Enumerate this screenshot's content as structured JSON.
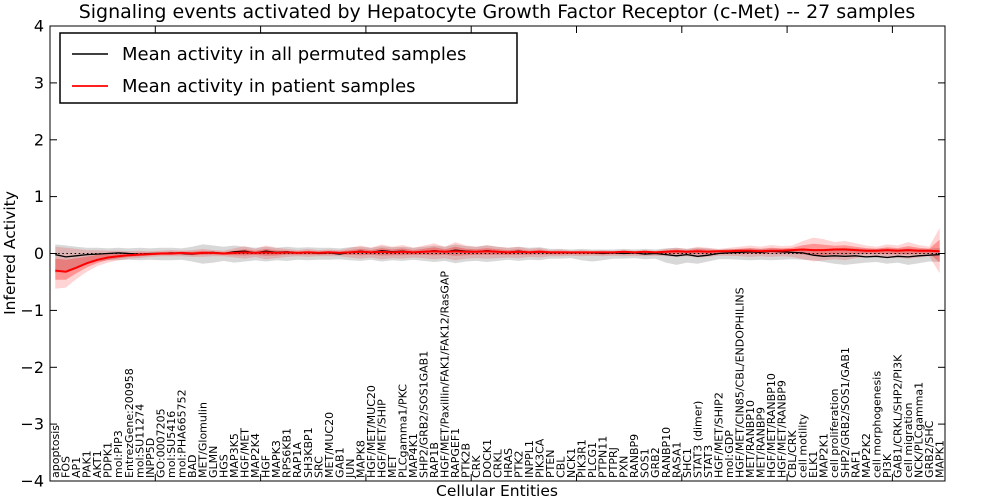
{
  "figure": {
    "background": "#ffffff"
  },
  "chart_data": {
    "type": "line",
    "title": "Signaling events activated by Hepatocyte Growth Factor Receptor (c-Met) -- 27 samples",
    "xlabel": "Cellular Entities",
    "ylabel": "Inferred Activity",
    "ylim": [
      -4,
      4
    ],
    "yticks": [
      {
        "value": 4,
        "label": "4"
      },
      {
        "value": 3,
        "label": "3"
      },
      {
        "value": 2,
        "label": "2"
      },
      {
        "value": 1,
        "label": "1"
      },
      {
        "value": 0,
        "label": "0"
      },
      {
        "value": -1,
        "label": "−1"
      },
      {
        "value": -2,
        "label": "−2"
      },
      {
        "value": -3,
        "label": "−3"
      },
      {
        "value": -4,
        "label": "−4"
      }
    ],
    "grid": false,
    "zero_line": {
      "style": "dotted",
      "color": "#000000",
      "y": 0
    },
    "legend": {
      "position": "upper left",
      "entries": [
        {
          "label": "Mean activity in all permuted samples",
          "color": "#000000"
        },
        {
          "label": "Mean activity in patient samples",
          "color": "#ff0000"
        }
      ]
    },
    "categories": [
      "apoptosis",
      "FOS",
      "AP1",
      "PAK1",
      "AKT1",
      "PDPK1",
      "mol:PIP3",
      "EntrezGene:200958",
      "mol:SU11274",
      "INPP5D",
      "GO:0007205",
      "mol:SU5416",
      "mol:PHA665752",
      "BAD",
      "MET/Glomulin",
      "GLMN",
      "HGS",
      "MAP3K5",
      "HGF/MET",
      "MAP2K4",
      "HGF",
      "MAPK3",
      "RPS6KB1",
      "RAP1A",
      "SH3KBP1",
      "SRC",
      "MET/MUC20",
      "GAB1",
      "JUN",
      "MAPK8",
      "HGF/MET/MUC20",
      "HGF/MET/SHIP",
      "MET",
      "PLCgamma1/PKC",
      "MAP4K1",
      "SHP2/GRB2/SOS1GAB1",
      "RAP1B",
      "HGF/MET/Paxillin/FAK1/FAK12/RasGAP",
      "RAPGEF1",
      "PTK2B",
      "CRK",
      "DOCK1",
      "CRKL",
      "HRAS",
      "PTK2",
      "INPPL1",
      "PIK3CA",
      "PTEN",
      "CBL",
      "NCK1",
      "PIK3R1",
      "PLCG1",
      "PTPN11",
      "PTPRJ",
      "PXN",
      "RANBP9",
      "SOS1",
      "GRB2",
      "RANBP10",
      "RASA1",
      "SHC1",
      "STAT3 (dimer)",
      "STAT3",
      "HGF/MET/SHIP2",
      "mol:GDP",
      "HGF/MET/CIN85/CBL/ENDOPHILINS",
      "MET/RANBP10",
      "MET/RANBP9",
      "HGF/MET/RANBP10",
      "HGF/MET/RANBP9",
      "CBL/CRK",
      "cell motility",
      "ELK1",
      "MAP2K1",
      "cell proliferation",
      "SHP2/GRB2/SOS1/GAB1",
      "RAF1",
      "MAP2K2",
      "cell morphogenesis",
      "PI3K",
      "GAB1/CRKL/SHP2/PI3K",
      "cell migration",
      "NCK/PLCgamma1",
      "GRB2/SHC",
      "MAPK1"
    ],
    "series": [
      {
        "name": "Mean activity in all permuted samples",
        "color": "#000000",
        "values": [
          -0.02,
          -0.06,
          -0.04,
          -0.02,
          -0.01,
          0,
          0.01,
          0,
          -0.01,
          0,
          0,
          0.01,
          0,
          -0.01,
          0.01,
          0.02,
          0,
          0.03,
          0.04,
          0.01,
          0.04,
          0.02,
          0.03,
          0.01,
          0.02,
          0,
          0.01,
          -0.01,
          0.02,
          0.04,
          0.02,
          0.05,
          0.03,
          0.04,
          0.02,
          0.03,
          0.05,
          0.03,
          0.06,
          0.04,
          0.03,
          0.05,
          0.03,
          0.02,
          0.04,
          0.02,
          0.03,
          0.01,
          0.02,
          0.01,
          0.02,
          0.01,
          0,
          0.01,
          0,
          0.01,
          -0.01,
          0,
          -0.02,
          -0.04,
          -0.02,
          -0.05,
          -0.03,
          0,
          0.01,
          0.02,
          0.03,
          0.02,
          0.04,
          0.03,
          0.02,
          0.01,
          -0.03,
          -0.05,
          -0.04,
          -0.05,
          -0.04,
          -0.06,
          -0.05,
          -0.07,
          -0.05,
          -0.06,
          -0.04,
          -0.03,
          -0.02
        ],
        "band": {
          "color": "#999999",
          "upper": [
            0.16,
            0.14,
            0.12,
            0.1,
            0.1,
            0.09,
            0.1,
            0.09,
            0.1,
            0.09,
            0.1,
            0.1,
            0.09,
            0.12,
            0.16,
            0.14,
            0.12,
            0.14,
            0.12,
            0.1,
            0.12,
            0.1,
            0.12,
            0.1,
            0.11,
            0.1,
            0.1,
            0.09,
            0.11,
            0.12,
            0.1,
            0.13,
            0.11,
            0.12,
            0.1,
            0.12,
            0.14,
            0.12,
            0.16,
            0.13,
            0.12,
            0.14,
            0.12,
            0.1,
            0.12,
            0.1,
            0.11,
            0.08,
            0.08,
            0.07,
            0.08,
            0.07,
            0.07,
            0.07,
            0.08,
            0.07,
            0.08,
            0.07,
            0.09,
            0.1,
            0.08,
            0.1,
            0.09,
            0.07,
            0.08,
            0.08,
            0.09,
            0.08,
            0.09,
            0.08,
            0.08,
            0.09,
            0.07,
            0.08,
            0.09,
            0.1,
            0.09,
            0.08,
            0.08,
            0.09,
            0.08,
            0.09,
            0.08,
            0.08,
            0.1
          ],
          "lower": [
            -0.34,
            -0.3,
            -0.24,
            -0.18,
            -0.14,
            -0.12,
            -0.12,
            -0.11,
            -0.12,
            -0.11,
            -0.12,
            -0.12,
            -0.11,
            -0.14,
            -0.18,
            -0.16,
            -0.13,
            -0.16,
            -0.14,
            -0.12,
            -0.14,
            -0.12,
            -0.13,
            -0.11,
            -0.12,
            -0.11,
            -0.11,
            -0.1,
            -0.12,
            -0.13,
            -0.11,
            -0.14,
            -0.12,
            -0.13,
            -0.11,
            -0.13,
            -0.15,
            -0.13,
            -0.17,
            -0.14,
            -0.13,
            -0.15,
            -0.13,
            -0.11,
            -0.13,
            -0.11,
            -0.12,
            -0.09,
            -0.09,
            -0.08,
            -0.12,
            -0.14,
            -0.12,
            -0.09,
            -0.09,
            -0.08,
            -0.1,
            -0.09,
            -0.16,
            -0.2,
            -0.16,
            -0.18,
            -0.14,
            -0.1,
            -0.1,
            -0.11,
            -0.12,
            -0.11,
            -0.12,
            -0.11,
            -0.1,
            -0.11,
            -0.12,
            -0.15,
            -0.18,
            -0.2,
            -0.18,
            -0.16,
            -0.15,
            -0.18,
            -0.16,
            -0.2,
            -0.17,
            -0.14,
            -0.15
          ]
        }
      },
      {
        "name": "Mean activity in patient samples",
        "color": "#ff0000",
        "values": [
          -0.3,
          -0.32,
          -0.25,
          -0.17,
          -0.11,
          -0.07,
          -0.05,
          -0.03,
          -0.02,
          -0.01,
          0,
          0,
          0.01,
          0,
          0.01,
          0.01,
          0,
          0.01,
          0.02,
          0.01,
          0.02,
          0.01,
          0.02,
          0.01,
          0.02,
          0.01,
          0.02,
          0.01,
          0.02,
          0.03,
          0.02,
          0.03,
          0.02,
          0.03,
          0.02,
          0.03,
          0.04,
          0.03,
          0.04,
          0.03,
          0.03,
          0.04,
          0.03,
          0.02,
          0.03,
          0.02,
          0.03,
          0.02,
          0.02,
          0.02,
          0.02,
          0.02,
          0.02,
          0.02,
          0.03,
          0.02,
          0.03,
          0.02,
          0.03,
          0.04,
          0.03,
          0.04,
          0.03,
          0.04,
          0.04,
          0.05,
          0.05,
          0.04,
          0.05,
          0.05,
          0.06,
          0.07,
          0.06,
          0.06,
          0.07,
          0.07,
          0.06,
          0.05,
          0.05,
          0.06,
          0.05,
          0.06,
          0.05,
          0.05,
          0.04
        ],
        "band": {
          "color": "#ff0000",
          "upper": [
            0.12,
            0.1,
            0.08,
            0.06,
            0.06,
            0.05,
            0.05,
            0.04,
            0.05,
            0.04,
            0.05,
            0.06,
            0.05,
            0.06,
            0.08,
            0.06,
            0.05,
            0.09,
            0.13,
            0.08,
            0.14,
            0.1,
            0.08,
            0.06,
            0.08,
            0.06,
            0.07,
            0.06,
            0.1,
            0.14,
            0.1,
            0.16,
            0.12,
            0.15,
            0.1,
            0.14,
            0.18,
            0.12,
            0.2,
            0.14,
            0.12,
            0.15,
            0.12,
            0.1,
            0.12,
            0.08,
            0.1,
            0.06,
            0.07,
            0.05,
            0.06,
            0.05,
            0.06,
            0.05,
            0.06,
            0.05,
            0.06,
            0.05,
            0.08,
            0.1,
            0.08,
            0.12,
            0.1,
            0.08,
            0.1,
            0.12,
            0.14,
            0.12,
            0.15,
            0.13,
            0.14,
            0.22,
            0.28,
            0.25,
            0.2,
            0.22,
            0.18,
            0.14,
            0.12,
            0.16,
            0.14,
            0.2,
            0.15,
            0.12,
            0.45
          ],
          "lower": [
            -0.62,
            -0.6,
            -0.45,
            -0.32,
            -0.22,
            -0.16,
            -0.12,
            -0.09,
            -0.08,
            -0.06,
            -0.05,
            -0.05,
            -0.05,
            -0.06,
            -0.06,
            -0.05,
            -0.05,
            -0.07,
            -0.09,
            -0.06,
            -0.1,
            -0.08,
            -0.06,
            -0.05,
            -0.06,
            -0.05,
            -0.05,
            -0.05,
            -0.07,
            -0.09,
            -0.07,
            -0.1,
            -0.08,
            -0.09,
            -0.07,
            -0.08,
            -0.1,
            -0.08,
            -0.12,
            -0.09,
            -0.08,
            -0.09,
            -0.08,
            -0.07,
            -0.08,
            -0.06,
            -0.07,
            -0.05,
            -0.05,
            -0.04,
            -0.05,
            -0.04,
            -0.05,
            -0.04,
            -0.05,
            -0.04,
            -0.05,
            -0.04,
            -0.05,
            -0.06,
            -0.05,
            -0.07,
            -0.06,
            -0.04,
            -0.04,
            -0.05,
            -0.06,
            -0.05,
            -0.06,
            -0.05,
            -0.06,
            -0.1,
            -0.14,
            -0.12,
            -0.1,
            -0.12,
            -0.08,
            -0.06,
            -0.06,
            -0.08,
            -0.07,
            -0.09,
            -0.07,
            -0.05,
            -0.35
          ]
        }
      }
    ]
  }
}
